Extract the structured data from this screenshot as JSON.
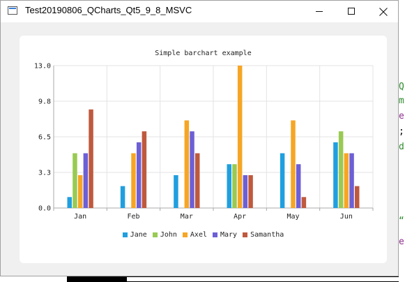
{
  "window": {
    "title": "Test20190806_QCharts_Qt5_9_8_MSVC",
    "controls": {
      "minimize": "minimize",
      "maximize": "maximize",
      "close": "close"
    }
  },
  "background": {
    "code_fragments": [
      "Q",
      "m",
      "e",
      ";",
      "d",
      "“",
      "e"
    ],
    "code_colors": [
      "#2e8b2e",
      "#2e8b2e",
      "#8b2e8b",
      "#000000",
      "#2e8b2e",
      "#2e8b2e",
      "#8b2e8b"
    ]
  },
  "colors": {
    "Jane": "#209fdf",
    "John": "#99ca53",
    "Axel": "#f6a625",
    "Mary": "#6d5fd5",
    "Samantha": "#bf593e"
  },
  "chart_data": {
    "type": "bar",
    "title": "Simple barchart example",
    "categories": [
      "Jan",
      "Feb",
      "Mar",
      "Apr",
      "May",
      "Jun"
    ],
    "series": [
      {
        "name": "Jane",
        "values": [
          1,
          2,
          3,
          4,
          5,
          6
        ]
      },
      {
        "name": "John",
        "values": [
          5,
          0,
          0,
          4,
          0,
          7
        ]
      },
      {
        "name": "Axel",
        "values": [
          3,
          5,
          8,
          13,
          8,
          5
        ]
      },
      {
        "name": "Mary",
        "values": [
          5,
          6,
          7,
          3,
          4,
          5
        ]
      },
      {
        "name": "Samantha",
        "values": [
          9,
          7,
          5,
          3,
          1,
          2
        ]
      }
    ],
    "ylim": [
      0,
      13
    ],
    "yticks": [
      "0.0",
      "3.3",
      "6.5",
      "9.8",
      "13.0"
    ],
    "xlabel": "",
    "ylabel": "",
    "grid": true,
    "legend": "bottom"
  }
}
